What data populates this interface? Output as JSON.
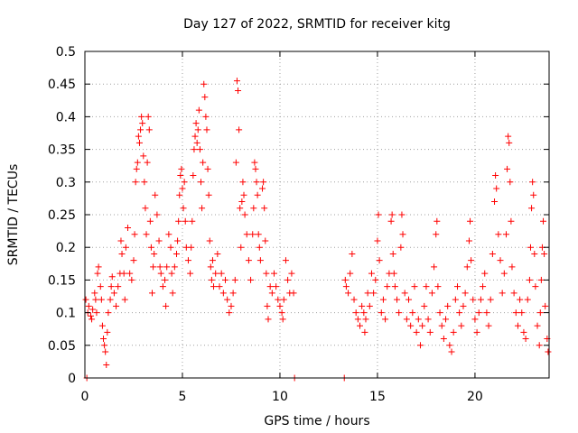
{
  "chart_data": {
    "type": "scatter",
    "title": "Day 127 of 2022, SRMTID for receiver kitg",
    "xlabel": "GPS time / hours",
    "ylabel": "SRMTID / TECUs",
    "xlim": [
      0,
      23.8
    ],
    "ylim": [
      0,
      0.5
    ],
    "xticks": [
      0,
      5,
      10,
      15,
      20
    ],
    "yticks": [
      0,
      0.05,
      0.1,
      0.15,
      0.2,
      0.25,
      0.3,
      0.35,
      0.4,
      0.45,
      0.5
    ],
    "xtick_labels": [
      "0",
      "5",
      "10",
      "15",
      "20"
    ],
    "ytick_labels": [
      "0",
      "0.05",
      "0.1",
      "0.15",
      "0.2",
      "0.25",
      "0.3",
      "0.35",
      "0.4",
      "0.45",
      "0.5"
    ],
    "grid": true,
    "marker": "+",
    "color": "#ff0000",
    "series": [
      {
        "points": [
          [
            0.05,
            0.12
          ],
          [
            0.1,
            0.0
          ],
          [
            0.15,
            0.1
          ],
          [
            0.2,
            0.11
          ],
          [
            0.3,
            0.095
          ],
          [
            0.35,
            0.09
          ],
          [
            0.4,
            0.105
          ],
          [
            0.5,
            0.13
          ],
          [
            0.55,
            0.12
          ],
          [
            0.6,
            0.1
          ],
          [
            0.65,
            0.16
          ],
          [
            0.7,
            0.17
          ],
          [
            0.8,
            0.14
          ],
          [
            0.85,
            0.12
          ],
          [
            0.9,
            0.08
          ],
          [
            0.95,
            0.06
          ],
          [
            1.0,
            0.05
          ],
          [
            1.05,
            0.04
          ],
          [
            1.1,
            0.02
          ],
          [
            1.15,
            0.07
          ],
          [
            1.2,
            0.1
          ],
          [
            1.3,
            0.12
          ],
          [
            1.35,
            0.14
          ],
          [
            1.4,
            0.155
          ],
          [
            1.5,
            0.13
          ],
          [
            1.6,
            0.11
          ],
          [
            1.7,
            0.14
          ],
          [
            1.8,
            0.16
          ],
          [
            1.85,
            0.21
          ],
          [
            1.9,
            0.19
          ],
          [
            2.0,
            0.16
          ],
          [
            2.05,
            0.12
          ],
          [
            2.1,
            0.2
          ],
          [
            2.2,
            0.23
          ],
          [
            2.3,
            0.16
          ],
          [
            2.4,
            0.15
          ],
          [
            2.5,
            0.18
          ],
          [
            2.55,
            0.22
          ],
          [
            2.6,
            0.3
          ],
          [
            2.65,
            0.32
          ],
          [
            2.7,
            0.33
          ],
          [
            2.75,
            0.37
          ],
          [
            2.8,
            0.36
          ],
          [
            2.85,
            0.38
          ],
          [
            2.9,
            0.4
          ],
          [
            2.95,
            0.39
          ],
          [
            3.0,
            0.34
          ],
          [
            3.05,
            0.3
          ],
          [
            3.1,
            0.26
          ],
          [
            3.15,
            0.22
          ],
          [
            3.2,
            0.33
          ],
          [
            3.25,
            0.4
          ],
          [
            3.3,
            0.38
          ],
          [
            3.35,
            0.24
          ],
          [
            3.4,
            0.2
          ],
          [
            3.45,
            0.13
          ],
          [
            3.5,
            0.17
          ],
          [
            3.55,
            0.19
          ],
          [
            3.6,
            0.28
          ],
          [
            3.7,
            0.25
          ],
          [
            3.8,
            0.21
          ],
          [
            3.85,
            0.17
          ],
          [
            3.9,
            0.16
          ],
          [
            4.0,
            0.14
          ],
          [
            4.1,
            0.15
          ],
          [
            4.15,
            0.11
          ],
          [
            4.2,
            0.17
          ],
          [
            4.3,
            0.22
          ],
          [
            4.4,
            0.2
          ],
          [
            4.45,
            0.16
          ],
          [
            4.5,
            0.13
          ],
          [
            4.6,
            0.17
          ],
          [
            4.7,
            0.19
          ],
          [
            4.75,
            0.21
          ],
          [
            4.8,
            0.24
          ],
          [
            4.85,
            0.28
          ],
          [
            4.9,
            0.31
          ],
          [
            4.95,
            0.32
          ],
          [
            5.0,
            0.29
          ],
          [
            5.05,
            0.26
          ],
          [
            5.1,
            0.3
          ],
          [
            5.15,
            0.24
          ],
          [
            5.2,
            0.2
          ],
          [
            5.3,
            0.18
          ],
          [
            5.4,
            0.16
          ],
          [
            5.45,
            0.2
          ],
          [
            5.5,
            0.24
          ],
          [
            5.55,
            0.31
          ],
          [
            5.6,
            0.35
          ],
          [
            5.65,
            0.37
          ],
          [
            5.7,
            0.39
          ],
          [
            5.75,
            0.36
          ],
          [
            5.8,
            0.38
          ],
          [
            5.85,
            0.41
          ],
          [
            5.9,
            0.35
          ],
          [
            5.95,
            0.3
          ],
          [
            6.0,
            0.26
          ],
          [
            6.05,
            0.33
          ],
          [
            6.1,
            0.45
          ],
          [
            6.15,
            0.43
          ],
          [
            6.2,
            0.4
          ],
          [
            6.25,
            0.38
          ],
          [
            6.3,
            0.32
          ],
          [
            6.35,
            0.28
          ],
          [
            6.4,
            0.21
          ],
          [
            6.45,
            0.17
          ],
          [
            6.5,
            0.15
          ],
          [
            6.55,
            0.18
          ],
          [
            6.6,
            0.14
          ],
          [
            6.7,
            0.16
          ],
          [
            6.8,
            0.19
          ],
          [
            6.9,
            0.14
          ],
          [
            7.0,
            0.16
          ],
          [
            7.1,
            0.13
          ],
          [
            7.2,
            0.15
          ],
          [
            7.3,
            0.12
          ],
          [
            7.4,
            0.1
          ],
          [
            7.5,
            0.11
          ],
          [
            7.6,
            0.13
          ],
          [
            7.7,
            0.15
          ],
          [
            7.75,
            0.33
          ],
          [
            7.8,
            0.455
          ],
          [
            7.85,
            0.44
          ],
          [
            7.9,
            0.38
          ],
          [
            7.95,
            0.26
          ],
          [
            8.0,
            0.2
          ],
          [
            8.05,
            0.27
          ],
          [
            8.1,
            0.3
          ],
          [
            8.15,
            0.28
          ],
          [
            8.2,
            0.25
          ],
          [
            8.3,
            0.22
          ],
          [
            8.4,
            0.18
          ],
          [
            8.5,
            0.15
          ],
          [
            8.6,
            0.22
          ],
          [
            8.65,
            0.26
          ],
          [
            8.7,
            0.33
          ],
          [
            8.75,
            0.32
          ],
          [
            8.8,
            0.3
          ],
          [
            8.85,
            0.28
          ],
          [
            8.9,
            0.22
          ],
          [
            8.95,
            0.2
          ],
          [
            9.0,
            0.18
          ],
          [
            9.1,
            0.29
          ],
          [
            9.15,
            0.3
          ],
          [
            9.2,
            0.26
          ],
          [
            9.25,
            0.21
          ],
          [
            9.3,
            0.16
          ],
          [
            9.35,
            0.11
          ],
          [
            9.4,
            0.09
          ],
          [
            9.5,
            0.14
          ],
          [
            9.6,
            0.13
          ],
          [
            9.7,
            0.16
          ],
          [
            9.8,
            0.14
          ],
          [
            9.9,
            0.12
          ],
          [
            10.0,
            0.11
          ],
          [
            10.1,
            0.1
          ],
          [
            10.15,
            0.09
          ],
          [
            10.2,
            0.12
          ],
          [
            10.3,
            0.18
          ],
          [
            10.4,
            0.15
          ],
          [
            10.5,
            0.13
          ],
          [
            10.6,
            0.16
          ],
          [
            10.7,
            0.13
          ],
          [
            10.75,
            0.0
          ],
          [
            13.3,
            0.0
          ],
          [
            13.35,
            0.15
          ],
          [
            13.4,
            0.14
          ],
          [
            13.5,
            0.13
          ],
          [
            13.6,
            0.16
          ],
          [
            13.7,
            0.19
          ],
          [
            13.8,
            0.12
          ],
          [
            13.9,
            0.1
          ],
          [
            14.0,
            0.09
          ],
          [
            14.1,
            0.08
          ],
          [
            14.2,
            0.11
          ],
          [
            14.3,
            0.1
          ],
          [
            14.35,
            0.07
          ],
          [
            14.4,
            0.09
          ],
          [
            14.5,
            0.13
          ],
          [
            14.6,
            0.11
          ],
          [
            14.7,
            0.16
          ],
          [
            14.8,
            0.13
          ],
          [
            14.9,
            0.15
          ],
          [
            15.0,
            0.21
          ],
          [
            15.05,
            0.25
          ],
          [
            15.1,
            0.18
          ],
          [
            15.2,
            0.1
          ],
          [
            15.3,
            0.12
          ],
          [
            15.4,
            0.09
          ],
          [
            15.5,
            0.14
          ],
          [
            15.6,
            0.16
          ],
          [
            15.7,
            0.24
          ],
          [
            15.75,
            0.25
          ],
          [
            15.8,
            0.19
          ],
          [
            15.85,
            0.16
          ],
          [
            15.9,
            0.14
          ],
          [
            16.0,
            0.12
          ],
          [
            16.1,
            0.1
          ],
          [
            16.2,
            0.2
          ],
          [
            16.25,
            0.25
          ],
          [
            16.3,
            0.22
          ],
          [
            16.4,
            0.13
          ],
          [
            16.5,
            0.09
          ],
          [
            16.6,
            0.12
          ],
          [
            16.7,
            0.08
          ],
          [
            16.8,
            0.1
          ],
          [
            16.9,
            0.14
          ],
          [
            17.0,
            0.07
          ],
          [
            17.1,
            0.09
          ],
          [
            17.2,
            0.05
          ],
          [
            17.3,
            0.08
          ],
          [
            17.4,
            0.11
          ],
          [
            17.5,
            0.14
          ],
          [
            17.6,
            0.09
          ],
          [
            17.7,
            0.07
          ],
          [
            17.8,
            0.13
          ],
          [
            17.9,
            0.17
          ],
          [
            18.0,
            0.22
          ],
          [
            18.05,
            0.24
          ],
          [
            18.1,
            0.14
          ],
          [
            18.2,
            0.1
          ],
          [
            18.3,
            0.08
          ],
          [
            18.4,
            0.06
          ],
          [
            18.5,
            0.09
          ],
          [
            18.6,
            0.11
          ],
          [
            18.7,
            0.05
          ],
          [
            18.8,
            0.04
          ],
          [
            18.9,
            0.07
          ],
          [
            19.0,
            0.12
          ],
          [
            19.1,
            0.14
          ],
          [
            19.2,
            0.1
          ],
          [
            19.3,
            0.08
          ],
          [
            19.4,
            0.11
          ],
          [
            19.5,
            0.13
          ],
          [
            19.6,
            0.17
          ],
          [
            19.7,
            0.21
          ],
          [
            19.75,
            0.24
          ],
          [
            19.8,
            0.18
          ],
          [
            19.9,
            0.12
          ],
          [
            20.0,
            0.09
          ],
          [
            20.1,
            0.07
          ],
          [
            20.2,
            0.1
          ],
          [
            20.3,
            0.12
          ],
          [
            20.4,
            0.14
          ],
          [
            20.5,
            0.16
          ],
          [
            20.6,
            0.1
          ],
          [
            20.7,
            0.08
          ],
          [
            20.8,
            0.12
          ],
          [
            20.9,
            0.19
          ],
          [
            21.0,
            0.27
          ],
          [
            21.05,
            0.31
          ],
          [
            21.1,
            0.29
          ],
          [
            21.2,
            0.22
          ],
          [
            21.3,
            0.18
          ],
          [
            21.4,
            0.13
          ],
          [
            21.5,
            0.16
          ],
          [
            21.6,
            0.22
          ],
          [
            21.65,
            0.32
          ],
          [
            21.7,
            0.37
          ],
          [
            21.75,
            0.36
          ],
          [
            21.8,
            0.3
          ],
          [
            21.85,
            0.24
          ],
          [
            21.9,
            0.17
          ],
          [
            22.0,
            0.13
          ],
          [
            22.1,
            0.1
          ],
          [
            22.2,
            0.08
          ],
          [
            22.3,
            0.12
          ],
          [
            22.4,
            0.1
          ],
          [
            22.5,
            0.07
          ],
          [
            22.6,
            0.06
          ],
          [
            22.7,
            0.12
          ],
          [
            22.8,
            0.15
          ],
          [
            22.85,
            0.2
          ],
          [
            22.9,
            0.26
          ],
          [
            22.95,
            0.3
          ],
          [
            23.0,
            0.28
          ],
          [
            23.05,
            0.19
          ],
          [
            23.1,
            0.14
          ],
          [
            23.2,
            0.08
          ],
          [
            23.3,
            0.05
          ],
          [
            23.35,
            0.1
          ],
          [
            23.4,
            0.15
          ],
          [
            23.45,
            0.2
          ],
          [
            23.5,
            0.24
          ],
          [
            23.55,
            0.19
          ],
          [
            23.6,
            0.11
          ],
          [
            23.7,
            0.06
          ],
          [
            23.75,
            0.04
          ]
        ]
      }
    ]
  }
}
